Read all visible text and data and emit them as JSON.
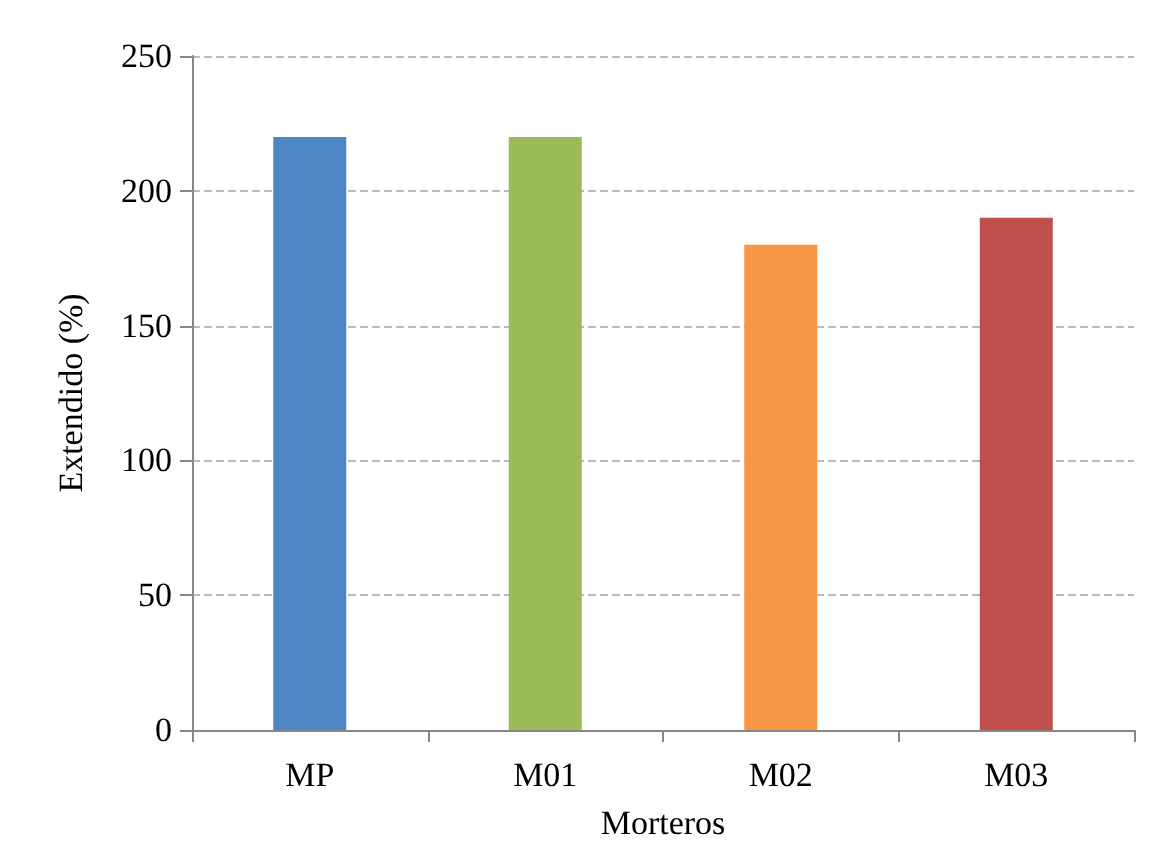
{
  "chart_data": {
    "type": "bar",
    "xlabel": "Morteros",
    "ylabel": "Extendido (%)",
    "categories": [
      "MP",
      "M01",
      "M02",
      "M03"
    ],
    "values": [
      220,
      220,
      180,
      190
    ],
    "colors": [
      "#4f86c6",
      "#9bbb59",
      "#f79646",
      "#c0504d"
    ],
    "ylim": [
      0,
      250
    ],
    "yticks": [
      0,
      50,
      100,
      150,
      200,
      250
    ],
    "grid": "y"
  }
}
